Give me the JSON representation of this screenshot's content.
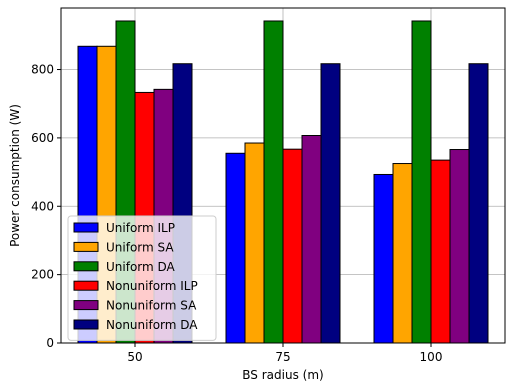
{
  "chart_data": {
    "type": "bar",
    "title": "",
    "xlabel": "BS radius (m)",
    "ylabel": "Power consumption (W)",
    "categories": [
      "50",
      "75",
      "100"
    ],
    "ylim": [
      0,
      980
    ],
    "yticks": [
      0,
      200,
      400,
      600,
      800
    ],
    "grid": true,
    "legend_position": "lower-left",
    "series": [
      {
        "name": "Uniform ILP",
        "color": "#0000ff",
        "values": [
          868,
          555,
          493
        ]
      },
      {
        "name": "Uniform SA",
        "color": "#ffa500",
        "values": [
          868,
          585,
          525
        ]
      },
      {
        "name": "Uniform DA",
        "color": "#008000",
        "values": [
          942,
          942,
          942
        ]
      },
      {
        "name": "Nonuniform ILP",
        "color": "#ff0000",
        "values": [
          733,
          567,
          535
        ]
      },
      {
        "name": "Nonuniform SA",
        "color": "#800080",
        "values": [
          742,
          607,
          566
        ]
      },
      {
        "name": "Nonuniform DA",
        "color": "#000080",
        "values": [
          817,
          817,
          817
        ]
      }
    ]
  }
}
